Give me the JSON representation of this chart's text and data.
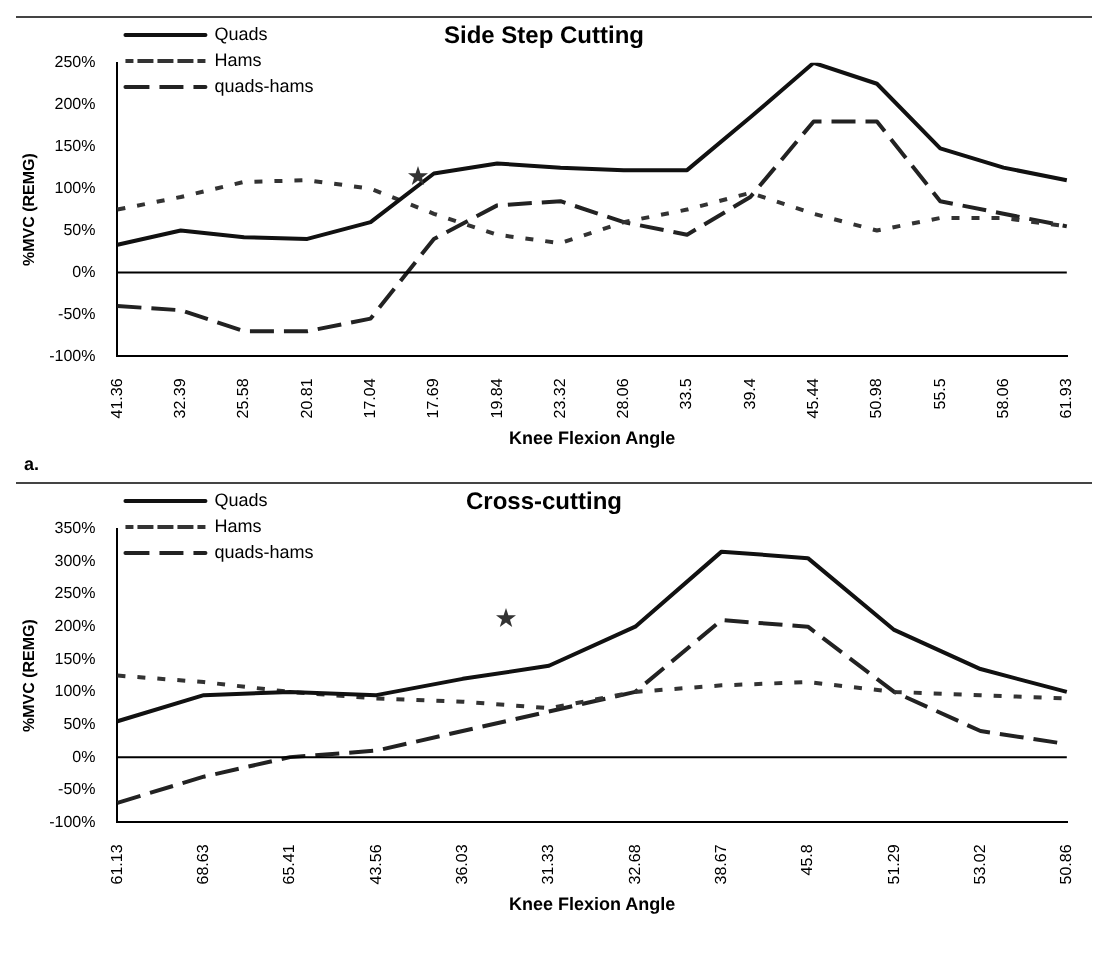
{
  "chart_data": [
    {
      "type": "line",
      "title": "Side Step Cutting",
      "xlabel": "Knee Flexion Angle",
      "ylabel": "%MVC (REMG)",
      "categories": [
        "41.36",
        "32.39",
        "25.58",
        "20.81",
        "17.04",
        "17.69",
        "19.84",
        "23.32",
        "28.06",
        "33.5",
        "39.4",
        "45.44",
        "50.98",
        "55.5",
        "58.06",
        "61.93"
      ],
      "series": [
        {
          "name": "Quads",
          "color": "#111111",
          "line_style": "solid",
          "values": [
            33,
            50,
            42,
            40,
            60,
            118,
            130,
            125,
            122,
            122,
            185,
            250,
            225,
            148,
            125,
            110
          ]
        },
        {
          "name": "Hams",
          "color": "#333333",
          "line_style": "dotted",
          "values": [
            75,
            90,
            108,
            110,
            100,
            70,
            45,
            35,
            60,
            75,
            95,
            70,
            50,
            65,
            65,
            55
          ]
        },
        {
          "name": "quads-hams",
          "color": "#222222",
          "line_style": "dashed",
          "values": [
            -40,
            -45,
            -70,
            -70,
            -55,
            40,
            80,
            85,
            60,
            45,
            90,
            180,
            180,
            85,
            70,
            55
          ]
        }
      ],
      "ylim": [
        -100,
        250
      ],
      "yticks": [
        {
          "value": -100,
          "label": "-100%"
        },
        {
          "value": -50,
          "label": "-50%"
        },
        {
          "value": 0,
          "label": "0%"
        },
        {
          "value": 50,
          "label": "50%"
        },
        {
          "value": 100,
          "label": "100%"
        },
        {
          "value": 150,
          "label": "150%"
        },
        {
          "value": 200,
          "label": "200%"
        },
        {
          "value": 250,
          "label": "250%"
        }
      ],
      "ref_lines": [
        {
          "axis": "y",
          "value": 0,
          "color": "#000000"
        }
      ],
      "grid": false,
      "legend": "top left",
      "marker": "none",
      "annotations": [
        "a."
      ]
    },
    {
      "type": "line",
      "title": "Cross-cutting",
      "xlabel": "Knee Flexion Angle",
      "ylabel": "%MVC (REMG)",
      "categories": [
        "61.13",
        "68.63",
        "65.41",
        "43.56",
        "36.03",
        "31.33",
        "32.68",
        "38.67",
        "45.8",
        "51.29",
        "53.02",
        "50.86"
      ],
      "series": [
        {
          "name": "Quads",
          "color": "#111111",
          "line_style": "solid",
          "values": [
            55,
            95,
            100,
            95,
            120,
            140,
            200,
            315,
            305,
            195,
            135,
            100
          ]
        },
        {
          "name": "Hams",
          "color": "#333333",
          "line_style": "dotted",
          "values": [
            125,
            115,
            100,
            90,
            85,
            75,
            100,
            110,
            115,
            100,
            95,
            90
          ]
        },
        {
          "name": "quads-hams",
          "color": "#222222",
          "line_style": "dashed",
          "values": [
            -70,
            -30,
            0,
            10,
            40,
            70,
            100,
            210,
            200,
            100,
            40,
            20
          ]
        }
      ],
      "ylim": [
        -100,
        350
      ],
      "yticks": [
        {
          "value": -100,
          "label": "-100%"
        },
        {
          "value": -50,
          "label": "-50%"
        },
        {
          "value": 0,
          "label": "0%"
        },
        {
          "value": 50,
          "label": "50%"
        },
        {
          "value": 100,
          "label": "100%"
        },
        {
          "value": 150,
          "label": "150%"
        },
        {
          "value": 200,
          "label": "200%"
        },
        {
          "value": 250,
          "label": "250%"
        },
        {
          "value": 300,
          "label": "300%"
        },
        {
          "value": 350,
          "label": "350%"
        }
      ],
      "ref_lines": [
        {
          "axis": "y",
          "value": 0,
          "color": "#000000"
        }
      ],
      "grid": false,
      "legend": "top left",
      "marker": "none"
    }
  ]
}
